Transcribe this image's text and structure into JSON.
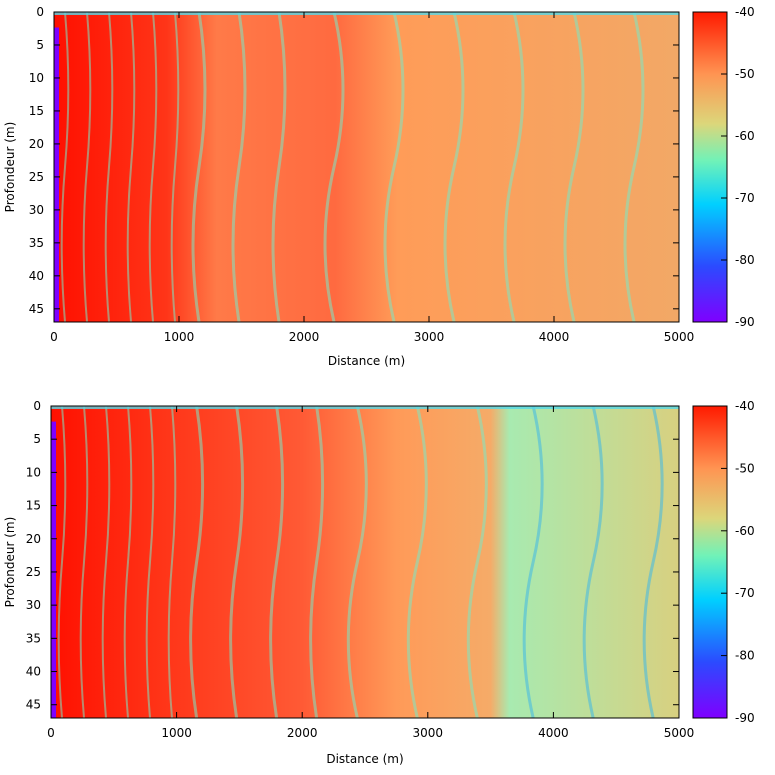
{
  "chart_data": [
    {
      "type": "heatmap",
      "title": "",
      "xlabel": "Distance (m)",
      "ylabel": "Profondeur (m)",
      "xlim": [
        0,
        5000
      ],
      "ylim": [
        0,
        47
      ],
      "y_inverted": true,
      "xticks": [
        0,
        1000,
        2000,
        3000,
        4000,
        5000
      ],
      "yticks": [
        0,
        5,
        10,
        15,
        20,
        25,
        30,
        35,
        40,
        45
      ],
      "colorbar": {
        "min": -90,
        "max": -40,
        "ticks": [
          -40,
          -50,
          -60,
          -70,
          -80,
          -90
        ],
        "colormap": "rainbow"
      },
      "regions": [
        {
          "x": [
            0,
            1000
          ],
          "level_db": -42,
          "description_colour": "red"
        },
        {
          "x": [
            1000,
            2000
          ],
          "level_db": -48,
          "description_colour": "red-orange"
        },
        {
          "x": [
            2000,
            5000
          ],
          "level_db": -54,
          "description_colour": "orange"
        }
      ],
      "grid": false
    },
    {
      "type": "heatmap",
      "title": "",
      "xlabel": "Distance (m)",
      "ylabel": "Profondeur (m)",
      "xlim": [
        0,
        5000
      ],
      "ylim": [
        0,
        47
      ],
      "y_inverted": true,
      "xticks": [
        0,
        1000,
        2000,
        3000,
        4000,
        5000
      ],
      "yticks": [
        0,
        5,
        10,
        15,
        20,
        25,
        30,
        35,
        40,
        45
      ],
      "colorbar": {
        "min": -90,
        "max": -40,
        "ticks": [
          -40,
          -50,
          -60,
          -70,
          -80,
          -90
        ],
        "colormap": "rainbow"
      },
      "regions": [
        {
          "x": [
            0,
            1000
          ],
          "level_db": -42,
          "description_colour": "red"
        },
        {
          "x": [
            1000,
            2200
          ],
          "level_db": -47,
          "description_colour": "red-orange"
        },
        {
          "x": [
            2200,
            3600
          ],
          "level_db": -52,
          "description_colour": "orange"
        },
        {
          "x": [
            3600,
            5000
          ],
          "level_db": -62,
          "description_colour": "green-cyan"
        }
      ],
      "grid": false
    }
  ],
  "colors": {
    "rainbow": [
      "#7f00ff",
      "#2b4bff",
      "#00c8ff",
      "#66f0c0",
      "#d8d878",
      "#ff9a55",
      "#ff3a1a",
      "#ff0000"
    ]
  }
}
